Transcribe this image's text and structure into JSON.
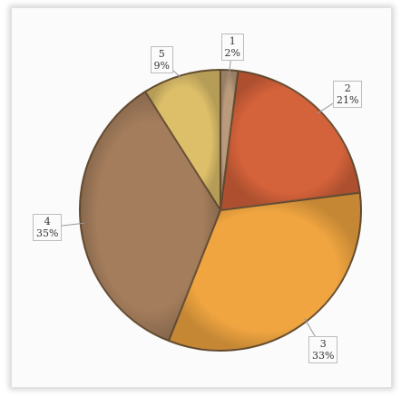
{
  "chart_data": {
    "type": "pie",
    "slices": [
      {
        "category": "1",
        "value": 2,
        "label": "2%",
        "color": "#b99a7b"
      },
      {
        "category": "2",
        "value": 21,
        "label": "21%",
        "color": "#d4623a"
      },
      {
        "category": "3",
        "value": 33,
        "label": "33%",
        "color": "#f0a540"
      },
      {
        "category": "4",
        "value": 35,
        "label": "35%",
        "color": "#a47d5c"
      },
      {
        "category": "5",
        "value": 9,
        "label": "9%",
        "color": "#ddbf6a"
      }
    ],
    "start_angle_deg": 0,
    "direction": "clockwise",
    "legend": "none",
    "data_labels": "callouts with category and percent"
  }
}
